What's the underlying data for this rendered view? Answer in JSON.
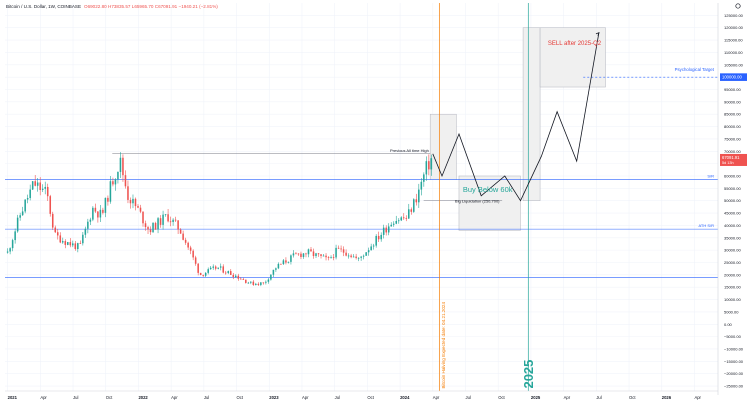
{
  "chart_data": {
    "type": "candlestick",
    "header": {
      "symbol": "Bitcoin / U.S. Dollar, 1W, COINBASE",
      "ohlc": "O69022.80  H73835.57  L65965.70  C67091.91  −1940.21 (−2.81%)"
    },
    "y_axis": {
      "ticks": [
        125000,
        120000,
        115000,
        110000,
        105000,
        100000,
        95000,
        90000,
        85000,
        80000,
        75000,
        70000,
        65000,
        60000,
        55000,
        50000,
        45000,
        40000,
        35000,
        30000,
        25000,
        20000,
        15000,
        10000,
        5000,
        0,
        -5000,
        -10000,
        -15000,
        -20000,
        -25000
      ],
      "tick_labels": [
        "125000.00",
        "120000.00",
        "115000.00",
        "110000.00",
        "105000.00",
        "100000.00",
        "95000.00",
        "90000.00",
        "85000.00",
        "80000.00",
        "75000.00",
        "70000.00",
        "65000.00",
        "60000.00",
        "55000.00",
        "50000.00",
        "45000.00",
        "40000.00",
        "35000.00",
        "30000.00",
        "25000.00",
        "20000.00",
        "15000.00",
        "10000.00",
        "5000.00",
        "0.00",
        "−5000.00",
        "−10000.00",
        "−15000.00",
        "−20000.00",
        "−25000.00"
      ],
      "range": [
        -27000,
        130000
      ]
    },
    "x_axis": {
      "ticks": [
        {
          "label": "2021",
          "t": 2021.0,
          "bold": true
        },
        {
          "label": "Apr",
          "t": 2021.25
        },
        {
          "label": "Jul",
          "t": 2021.5
        },
        {
          "label": "Oct",
          "t": 2021.75
        },
        {
          "label": "2022",
          "t": 2022.0,
          "bold": true
        },
        {
          "label": "Apr",
          "t": 2022.25
        },
        {
          "label": "Jul",
          "t": 2022.5
        },
        {
          "label": "Oct",
          "t": 2022.75
        },
        {
          "label": "2023",
          "t": 2023.0,
          "bold": true
        },
        {
          "label": "Apr",
          "t": 2023.25
        },
        {
          "label": "Jul",
          "t": 2023.5
        },
        {
          "label": "Oct",
          "t": 2023.75
        },
        {
          "label": "2024",
          "t": 2024.0,
          "bold": true
        },
        {
          "label": "Apr",
          "t": 2024.25
        },
        {
          "label": "Jul",
          "t": 2024.5
        },
        {
          "label": "Oct",
          "t": 2024.75
        },
        {
          "label": "2025",
          "t": 2025.0,
          "bold": true
        },
        {
          "label": "Apr",
          "t": 2025.25
        },
        {
          "label": "Jul",
          "t": 2025.5
        },
        {
          "label": "Oct",
          "t": 2025.75
        },
        {
          "label": "2026",
          "t": 2026.0,
          "bold": true
        },
        {
          "label": "Apr",
          "t": 2026.25
        }
      ],
      "range": [
        2020.98,
        2026.43
      ]
    },
    "price_path": [
      [
        2021.0,
        29000
      ],
      [
        2021.1,
        45000
      ],
      [
        2021.2,
        57000
      ],
      [
        2021.3,
        53000
      ],
      [
        2021.36,
        36000
      ],
      [
        2021.46,
        33000
      ],
      [
        2021.55,
        31000
      ],
      [
        2021.65,
        47000
      ],
      [
        2021.72,
        44000
      ],
      [
        2021.8,
        58000
      ],
      [
        2021.86,
        66000
      ],
      [
        2021.92,
        52000
      ],
      [
        2022.0,
        46000
      ],
      [
        2022.08,
        38000
      ],
      [
        2022.22,
        44000
      ],
      [
        2022.32,
        38000
      ],
      [
        2022.4,
        29000
      ],
      [
        2022.47,
        20000
      ],
      [
        2022.6,
        23000
      ],
      [
        2022.75,
        19500
      ],
      [
        2022.86,
        16500
      ],
      [
        2022.96,
        16600
      ],
      [
        2023.05,
        23000
      ],
      [
        2023.2,
        28000
      ],
      [
        2023.3,
        29000
      ],
      [
        2023.45,
        26000
      ],
      [
        2023.52,
        30000
      ],
      [
        2023.6,
        29000
      ],
      [
        2023.68,
        26000
      ],
      [
        2023.82,
        34500
      ],
      [
        2023.95,
        42500
      ],
      [
        2024.05,
        43000
      ],
      [
        2024.13,
        52000
      ],
      [
        2024.2,
        63000
      ],
      [
        2024.25,
        68000
      ]
    ],
    "overlays": {
      "lines": [
        {
          "label": "Previous All time High",
          "value": 69000
        },
        {
          "label": "S/R",
          "value": 58500
        },
        {
          "label": "ATH S/R",
          "value": 38500
        },
        {
          "label": "Big Liquidation (250,700)",
          "value": 50000
        },
        {
          "label": "Psychological Target",
          "value": 100000
        }
      ],
      "zones": [
        {
          "label": "Buy Below 60k",
          "from": 38000,
          "to": 60000
        },
        {
          "label": "SELL after 2025-Q2",
          "from": 96000,
          "to": 120000
        }
      ],
      "projection": [
        [
          2024.25,
          69000
        ],
        [
          2024.32,
          60000
        ],
        [
          2024.45,
          77000
        ],
        [
          2024.62,
          52000
        ],
        [
          2024.8,
          60000
        ],
        [
          2024.92,
          50000
        ],
        [
          2025.08,
          68000
        ],
        [
          2025.2,
          86000
        ],
        [
          2025.35,
          66000
        ],
        [
          2025.52,
          118000
        ]
      ]
    },
    "annotations": {
      "halving_text": "Bitcoin Halving Expected date: 04.21.2024",
      "year_marker": "2025",
      "psych_tag": "100000.00",
      "price_tag": "67091.91",
      "price_tag_sub": "5d 13h"
    }
  },
  "colors": {
    "up": "#26a69a",
    "down": "#ef5350",
    "sr_line": "#2962ff",
    "halving_line": "#f57c00",
    "year_line": "#26a69a",
    "zone_fill": "#f0f0f0",
    "zone_stroke": "#b2b5be",
    "sell_text": "#e53935",
    "buy_text": "#26a69a",
    "psych_tag": "#2962ff",
    "axis_text": "#131722"
  }
}
